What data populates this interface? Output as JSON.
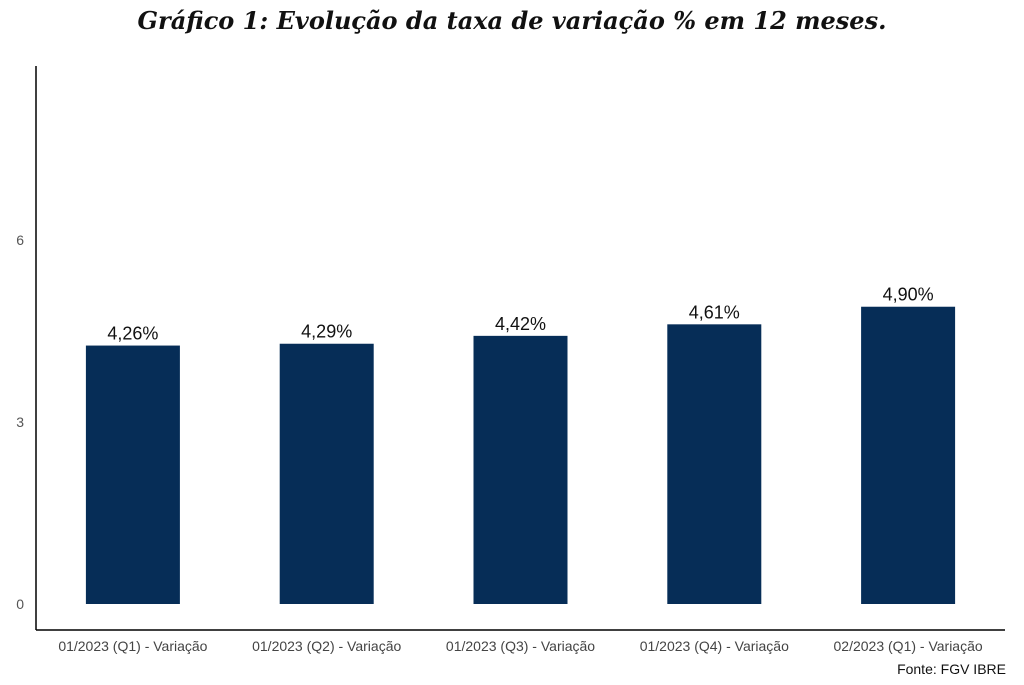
{
  "title": "Gráfico 1: Evolução da taxa de variação % em 12 meses.",
  "source": "Fonte: FGV IBRE",
  "colors": {
    "bar": "#062d57",
    "axis": "#000000"
  },
  "chart_data": {
    "type": "bar",
    "categories": [
      "01/2023 (Q1) - Variação",
      "01/2023 (Q2) - Variação",
      "01/2023 (Q3) - Variação",
      "01/2023 (Q4) - Variação",
      "02/2023 (Q1) - Variação"
    ],
    "values": [
      4.26,
      4.29,
      4.42,
      4.61,
      4.9
    ],
    "data_labels": [
      "4,26%",
      "4,29%",
      "4,42%",
      "4,61%",
      "4,90%"
    ],
    "yticks": [
      0,
      3,
      6
    ],
    "ylim": [
      0,
      8.9
    ],
    "grid": false,
    "legend": "none"
  }
}
